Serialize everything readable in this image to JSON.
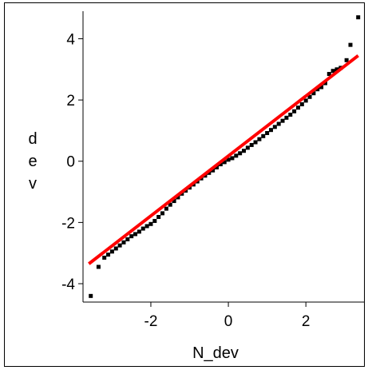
{
  "chart_data": {
    "type": "scatter",
    "title": "",
    "xlabel": "N_dev",
    "ylabel": "dev",
    "xlim": [
      -3.75,
      3.5
    ],
    "ylim": [
      -4.6,
      4.9
    ],
    "xticks": [
      -2,
      0,
      2
    ],
    "yticks": [
      -4,
      -2,
      0,
      2,
      4
    ],
    "grid": false,
    "colors": {
      "points": "#000000",
      "reference_line": "#ff0000"
    },
    "reference_line": {
      "x": [
        -3.6,
        3.35
      ],
      "y": [
        -3.35,
        3.45
      ]
    },
    "series": [
      {
        "x": [
          -3.55,
          -3.35,
          -3.2,
          -3.1,
          -3.0,
          -2.9,
          -2.8,
          -2.7,
          -2.6,
          -2.5,
          -2.4,
          -2.3,
          -2.2,
          -2.1,
          -2.0,
          -1.9,
          -1.8,
          -1.7,
          -1.6,
          -1.5,
          -1.4,
          -1.3,
          -1.2,
          -1.1,
          -1.0,
          -0.9,
          -0.8,
          -0.7,
          -0.6,
          -0.5,
          -0.4,
          -0.3,
          -0.2,
          -0.1,
          0.0,
          0.1,
          0.2,
          0.3,
          0.4,
          0.5,
          0.6,
          0.7,
          0.8,
          0.9,
          1.0,
          1.1,
          1.2,
          1.3,
          1.4,
          1.5,
          1.6,
          1.7,
          1.8,
          1.9,
          2.0,
          2.1,
          2.2,
          2.3,
          2.4,
          2.5,
          2.6,
          2.7,
          2.8,
          2.9,
          3.05,
          3.15,
          3.35
        ],
        "y": [
          -4.4,
          -3.45,
          -3.15,
          -3.05,
          -2.95,
          -2.85,
          -2.75,
          -2.65,
          -2.55,
          -2.45,
          -2.38,
          -2.3,
          -2.2,
          -2.12,
          -2.05,
          -1.95,
          -1.82,
          -1.7,
          -1.55,
          -1.42,
          -1.3,
          -1.18,
          -1.06,
          -0.96,
          -0.86,
          -0.76,
          -0.66,
          -0.56,
          -0.47,
          -0.38,
          -0.3,
          -0.2,
          -0.1,
          -0.03,
          0.05,
          0.1,
          0.18,
          0.26,
          0.34,
          0.44,
          0.53,
          0.62,
          0.72,
          0.82,
          0.92,
          1.02,
          1.12,
          1.22,
          1.32,
          1.42,
          1.52,
          1.63,
          1.75,
          1.86,
          1.98,
          2.1,
          2.22,
          2.35,
          2.42,
          2.55,
          2.85,
          2.95,
          3.0,
          3.05,
          3.3,
          3.8,
          4.7
        ]
      }
    ]
  }
}
